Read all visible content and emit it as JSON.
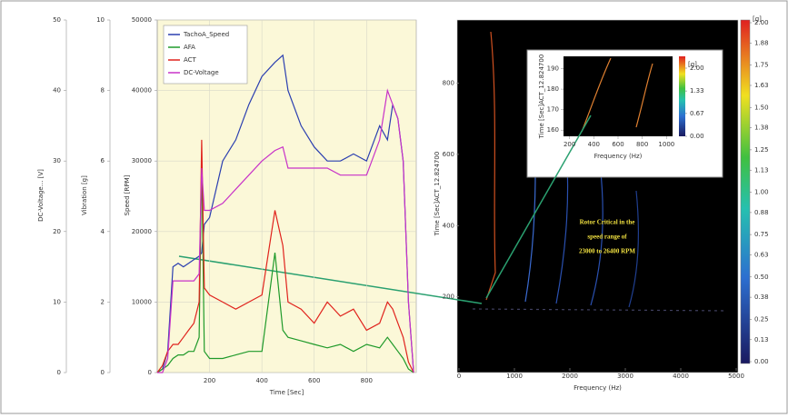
{
  "chart_data": [
    {
      "type": "line",
      "x_label": "Time [Sec]",
      "y_label": "Speed [RPM]",
      "y2_label": "Vibration [g]",
      "y3_label": "DC-Voltage... [V]",
      "xlim": [
        0,
        990
      ],
      "xticks": [
        200,
        400,
        600,
        800
      ],
      "ylim": [
        0,
        50000
      ],
      "yticks": [
        0,
        10000,
        20000,
        30000,
        40000,
        50000
      ],
      "y2lim": [
        0,
        10
      ],
      "y2ticks": [
        0,
        2,
        4,
        6,
        8,
        10
      ],
      "y3lim": [
        0,
        50
      ],
      "y3ticks": [
        0,
        10,
        20,
        30,
        40,
        50
      ],
      "grid": true,
      "legend": "upper left",
      "x": [
        0,
        20,
        40,
        60,
        80,
        100,
        120,
        140,
        160,
        170,
        180,
        200,
        250,
        300,
        350,
        400,
        450,
        480,
        500,
        550,
        600,
        650,
        700,
        750,
        800,
        850,
        880,
        900,
        920,
        940,
        960,
        980
      ],
      "series": [
        {
          "name": "TachoA_Speed",
          "color": "#2b3fb0",
          "axis": "y",
          "values": [
            0,
            500,
            3000,
            15000,
            15500,
            15000,
            15500,
            16000,
            16500,
            17000,
            21000,
            22000,
            30000,
            33000,
            38000,
            42000,
            44000,
            45000,
            40000,
            35000,
            32000,
            30000,
            30000,
            31000,
            30000,
            35000,
            33000,
            38000,
            36000,
            30000,
            10000,
            0
          ]
        },
        {
          "name": "AFA",
          "color": "#1f9a2a",
          "axis": "y2",
          "values": [
            0,
            0.1,
            0.2,
            0.4,
            0.5,
            0.5,
            0.6,
            0.6,
            1,
            6,
            0.6,
            0.4,
            0.4,
            0.5,
            0.6,
            0.6,
            3.4,
            1.2,
            1,
            0.9,
            0.8,
            0.7,
            0.8,
            0.6,
            0.8,
            0.7,
            1,
            0.8,
            0.6,
            0.4,
            0.1,
            0
          ]
        },
        {
          "name": "ACT",
          "color": "#e0231d",
          "axis": "y2",
          "values": [
            0,
            0.2,
            0.6,
            0.8,
            0.8,
            1,
            1.2,
            1.4,
            2,
            6.6,
            2.4,
            2.2,
            2,
            1.8,
            2,
            2.2,
            4.6,
            3.6,
            2,
            1.8,
            1.4,
            2,
            1.6,
            1.8,
            1.2,
            1.4,
            2,
            1.8,
            1.4,
            1,
            0.3,
            0
          ]
        },
        {
          "name": "DC-Voltage",
          "color": "#c832c8",
          "axis": "y3",
          "values": [
            0,
            0,
            2,
            13,
            13,
            13,
            13,
            13,
            14,
            29,
            23,
            23,
            24,
            26,
            28,
            30,
            31.5,
            32,
            29,
            29,
            29,
            29,
            28,
            28,
            28,
            33,
            40,
            38,
            36,
            30,
            10,
            0
          ]
        }
      ]
    },
    {
      "type": "heatmap",
      "x_label": "Frequency (Hz)",
      "y_label": "Time [Sec]ACT_12.824700",
      "xlim": [
        0,
        5000
      ],
      "xticks": [
        0,
        1000,
        2000,
        3000,
        4000,
        5000
      ],
      "ylim": [
        0,
        980
      ],
      "yticks": [
        200,
        400,
        600,
        800
      ],
      "colorbar_label": "[g]",
      "colorbar_lim": [
        0,
        2
      ],
      "colorbar_ticks": [
        {
          "value": 0,
          "label": "0.00"
        },
        {
          "value": 0.13,
          "label": "0.13"
        },
        {
          "value": 0.25,
          "label": "0.25"
        },
        {
          "value": 0.38,
          "label": "0.38"
        },
        {
          "value": 0.5,
          "label": "0.50"
        },
        {
          "value": 0.63,
          "label": "0.63"
        },
        {
          "value": 0.75,
          "label": "0.75"
        },
        {
          "value": 0.88,
          "label": "0.88"
        },
        {
          "value": 1,
          "label": "1.00"
        },
        {
          "value": 1.13,
          "label": "1.13"
        },
        {
          "value": 1.25,
          "label": "1.25"
        },
        {
          "value": 1.38,
          "label": "1.38"
        },
        {
          "value": 1.5,
          "label": "1.50"
        },
        {
          "value": 1.63,
          "label": "1.63"
        },
        {
          "value": 1.75,
          "label": "1.75"
        },
        {
          "value": 1.88,
          "label": "1.88"
        },
        {
          "value": 2,
          "label": "2.00"
        }
      ],
      "annotation": [
        "Rotor Critical in the",
        "speed range of",
        "23000 to 26400 RPM"
      ]
    },
    {
      "type": "heatmap",
      "x_label": "Frequency (Hz)",
      "y_label": "Time [Sec]ACT_12.824700",
      "xlim": [
        150,
        1050
      ],
      "xticks": [
        200,
        400,
        600,
        800,
        1000
      ],
      "ylim": [
        157,
        196
      ],
      "yticks": [
        160,
        170,
        180,
        190
      ],
      "colorbar_label": "[g]",
      "colorbar_lim": [
        0,
        2
      ],
      "colorbar_ticks": [
        {
          "value": 0,
          "label": "0.00"
        },
        {
          "value": 0.67,
          "label": "0.67"
        },
        {
          "value": 1.33,
          "label": "1.33"
        },
        {
          "value": 2,
          "label": "2.00"
        }
      ]
    }
  ]
}
